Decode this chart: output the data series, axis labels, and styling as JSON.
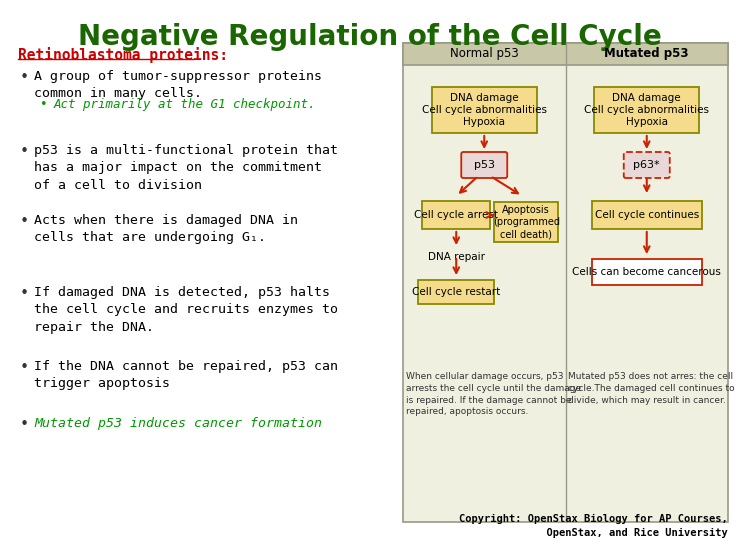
{
  "title": "Negative Regulation of the Cell Cycle",
  "title_color": "#1A6600",
  "title_fontsize": 20,
  "bg_color": "#FFFFFF",
  "subtitle": "Retinoblastoma proteins:",
  "subtitle_color": "#CC0000",
  "table_bg": "#F0F0E0",
  "table_border": "#999988",
  "header_bg": "#C8C8A8",
  "col1_header": "Normal p53",
  "col2_header": "Mutated p53",
  "box_fill_yellow": "#F5DC8C",
  "box_fill_pink": "#E8C8C8",
  "box_border_dark": "#888800",
  "box_border_red": "#CC2200",
  "arrow_color": "#CC2200",
  "caption1": "When cellular damage occurs, p53\narrests the cell cycle until the damage\nis repaired. If the damage cannot be\nrepaired, apoptosis occurs.",
  "caption2": "Mutated p53 does not arres: the cell\ncycle.The damaged cell continues to\ndivide, which may result in cancer.",
  "copyright": "Copyright: OpenStax Biology for AP Courses,\n          OpenStax, and Rice University"
}
